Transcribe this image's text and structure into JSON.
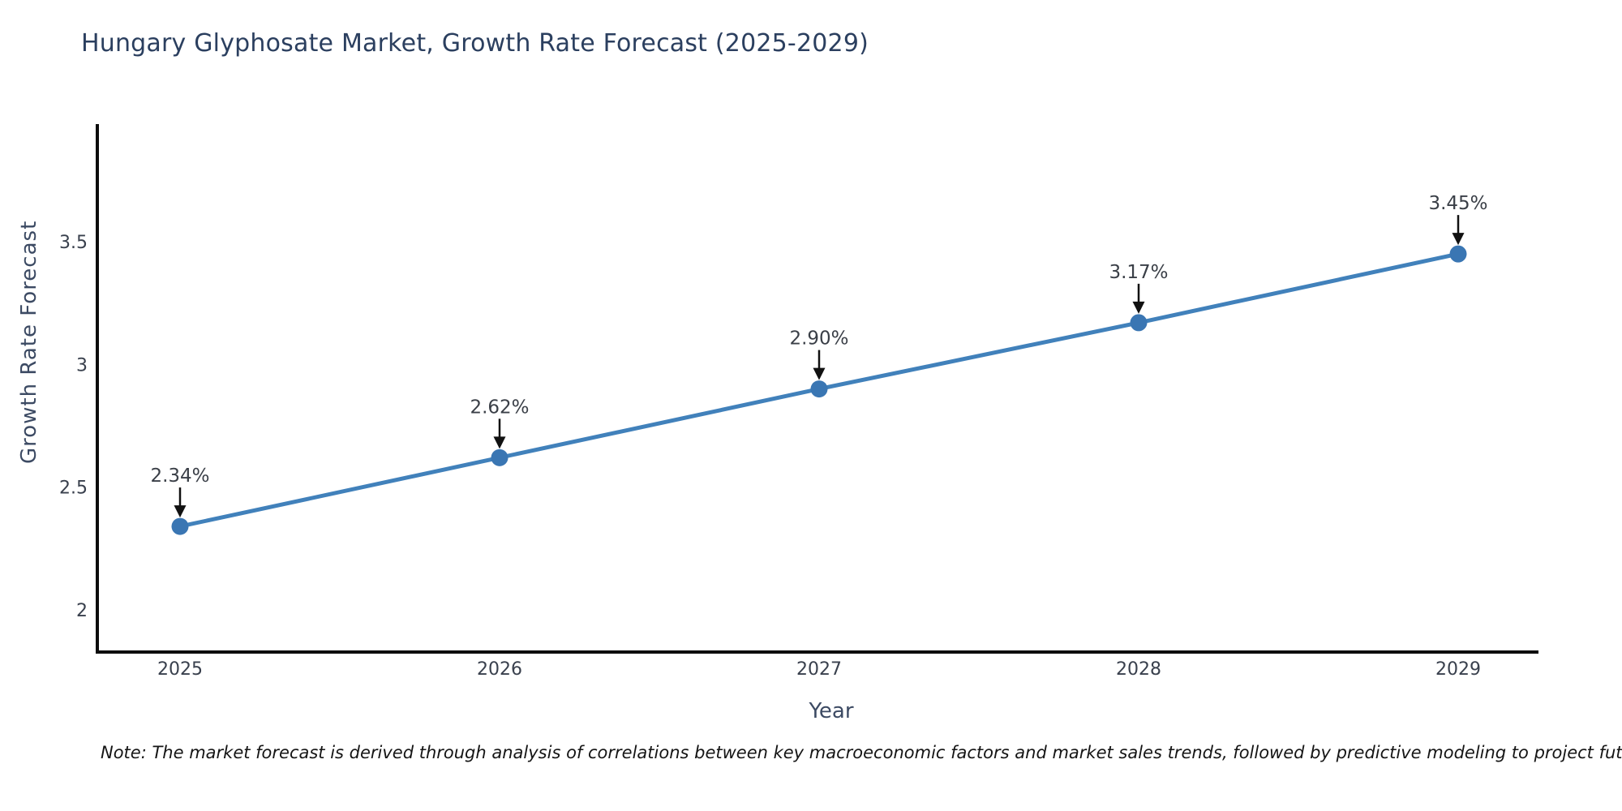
{
  "chart": {
    "title": "Hungary Glyphosate Market, Growth Rate Forecast (2025-2029)",
    "xlabel": "Year",
    "ylabel": "Growth Rate Forecast",
    "note": "Note: The market forecast is derived through analysis of correlations between key macroeconomic factors and market sales trends, followed by predictive modeling to project future sales",
    "colors": {
      "line": "#4181bb",
      "marker": "#3a76b3",
      "axis": "#0d0d0d",
      "tick_text": "#39404d",
      "annotation_text": "#3a3f47",
      "arrow": "#111111",
      "heading_text": "#2b3f5f"
    }
  },
  "chart_data": {
    "type": "line",
    "title": "Hungary Glyphosate Market, Growth Rate Forecast (2025-2029)",
    "xlabel": "Year",
    "ylabel": "Growth Rate Forecast",
    "x": [
      "2025",
      "2026",
      "2027",
      "2028",
      "2029"
    ],
    "values": [
      2.34,
      2.62,
      2.9,
      3.17,
      3.45
    ],
    "point_labels": [
      "2.34%",
      "2.62%",
      "2.90%",
      "3.17%",
      "3.45%"
    ],
    "yticks": [
      2,
      2.5,
      3,
      3.5
    ],
    "ylim": [
      1.83,
      3.98
    ],
    "grid": false,
    "legend": "none",
    "annotation_style": "black-down-arrow-above-each-point"
  }
}
